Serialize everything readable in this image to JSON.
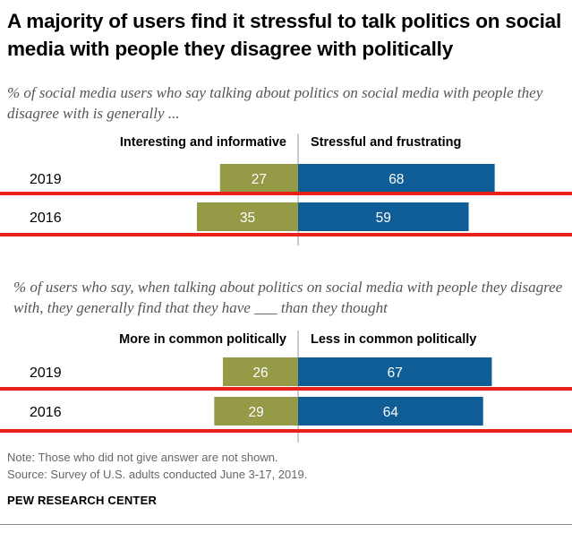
{
  "title": "A majority of users find it stressful to talk politics on social media with people they disagree with politically",
  "note": "Note: Those who did not give answer are not shown.",
  "source": "Source: Survey of U.S. adults conducted June 3-17, 2019.",
  "org": "PEW RESEARCH CENTER",
  "colors": {
    "left": "#959a46",
    "right": "#0f5d96",
    "highlight": "#e8211b"
  },
  "chart_data": [
    {
      "type": "bar",
      "subtitle": "% of social media users who say talking about politics on social media with people they disagree with is generally ...",
      "categories": [
        "2019",
        "2016"
      ],
      "series": [
        {
          "name": "Interesting and informative",
          "values": [
            27,
            35
          ]
        },
        {
          "name": "Stressful and frustrating",
          "values": [
            68,
            59
          ]
        }
      ],
      "highlighted_rows": [
        "2016"
      ]
    },
    {
      "type": "bar",
      "subtitle": "% of users who say, when talking about politics on social media with people they disagree with, they generally find that they have ___ than they thought",
      "categories": [
        "2019",
        "2016"
      ],
      "series": [
        {
          "name": "More in common politically",
          "values": [
            26,
            29
          ]
        },
        {
          "name": "Less in common politically",
          "values": [
            67,
            64
          ]
        }
      ],
      "highlighted_rows": [
        "2019",
        "2016"
      ]
    }
  ]
}
